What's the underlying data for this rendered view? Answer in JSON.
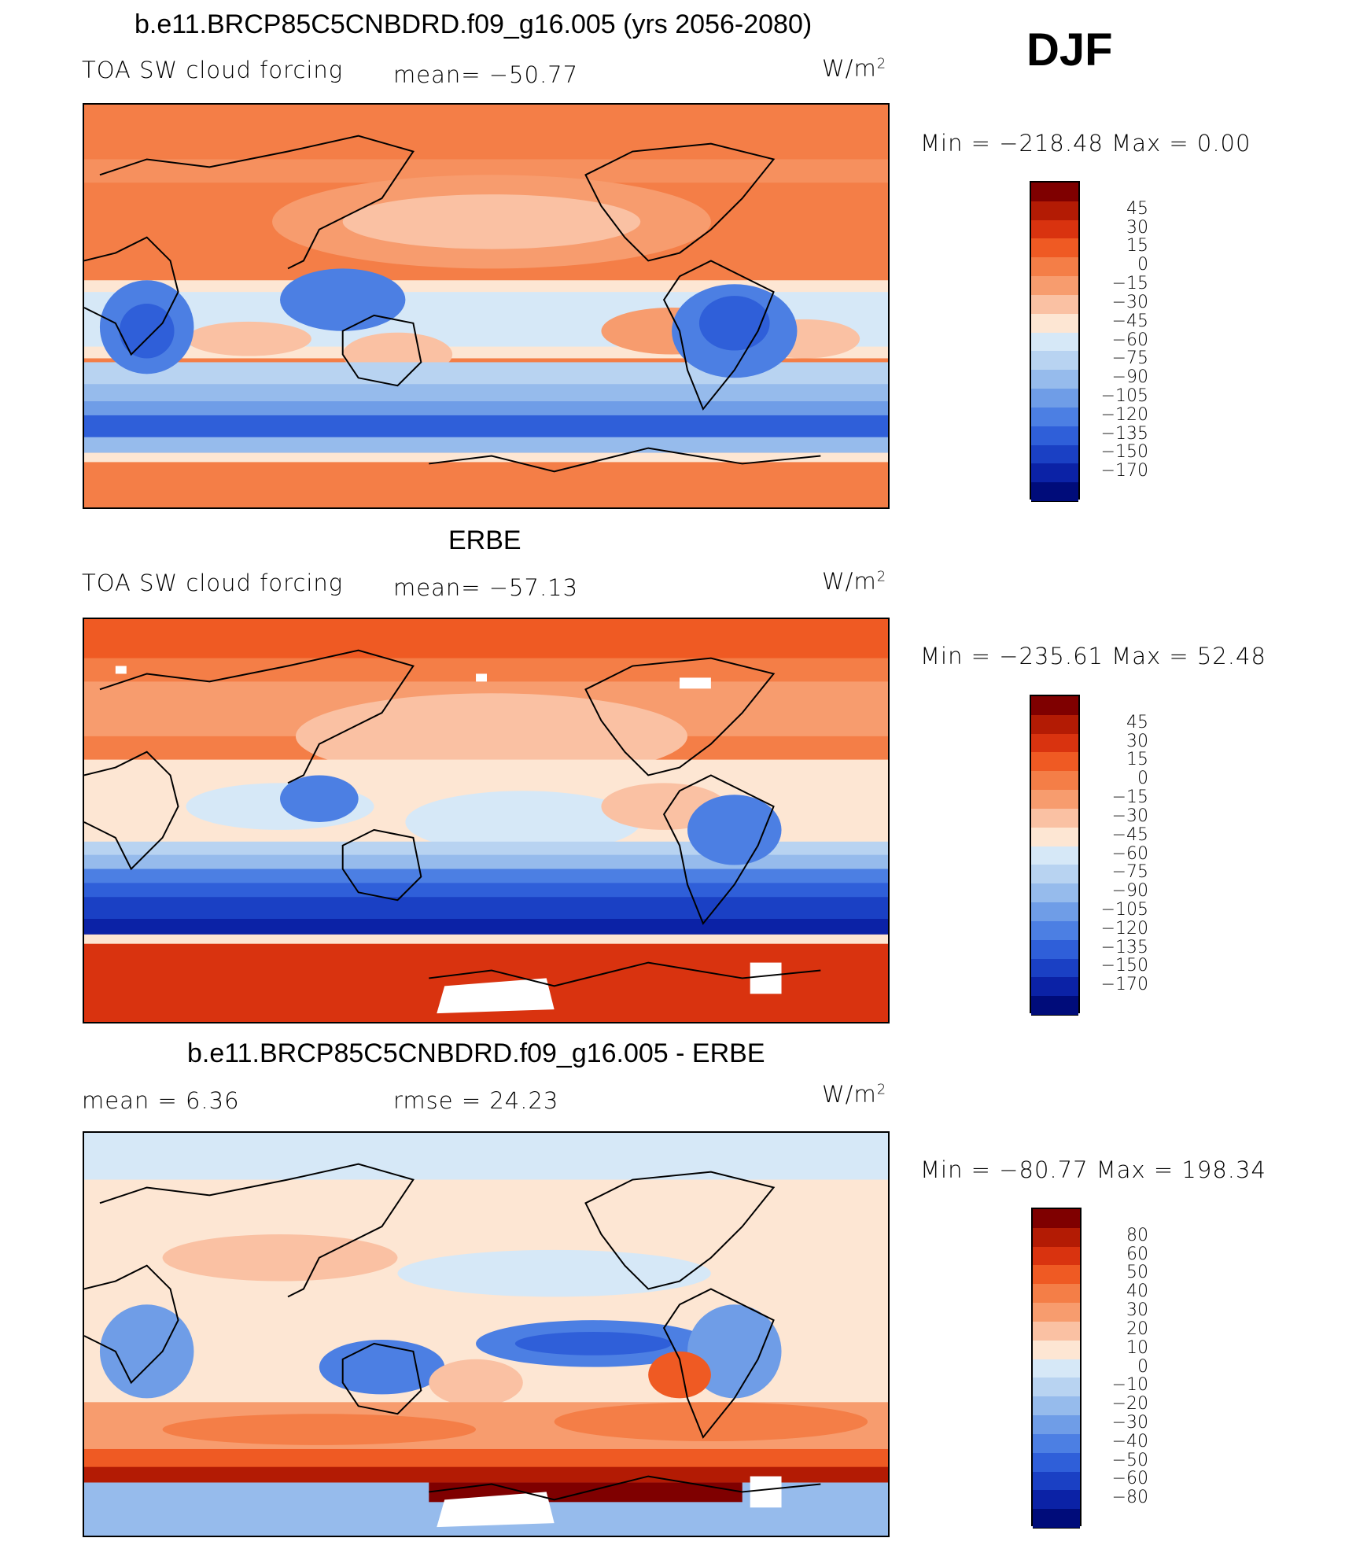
{
  "season": "DJF",
  "panels": [
    {
      "title": "b.e11.BRCP85C5CNBDRD.f09_g16.005 (yrs 2056-2080)",
      "left_label": "TOA SW cloud forcing",
      "center_label": "mean= −50.77",
      "units": "W/m",
      "units_sup": "2",
      "minmax": "Min = −218.48 Max = 0.00",
      "colorbar": {
        "colors": [
          "#7f0000",
          "#b31b04",
          "#d9330f",
          "#ef5a23",
          "#f47e47",
          "#f79c6e",
          "#fac1a3",
          "#fde6d3",
          "#d6e8f7",
          "#b8d3f1",
          "#96bbec",
          "#6f9de7",
          "#4c7fe3",
          "#2f5fd9",
          "#1a40c4",
          "#0b22a6",
          "#000c7a"
        ],
        "labels": [
          "45",
          "30",
          "15",
          "0",
          "−15",
          "−30",
          "−45",
          "−60",
          "−75",
          "−90",
          "−105",
          "−120",
          "−135",
          "−150",
          "−170"
        ]
      }
    },
    {
      "title": "ERBE",
      "left_label": "TOA SW cloud forcing",
      "center_label": "mean= −57.13",
      "units": "W/m",
      "units_sup": "2",
      "minmax": "Min = −235.61 Max = 52.48",
      "colorbar": {
        "colors": [
          "#7f0000",
          "#b31b04",
          "#d9330f",
          "#ef5a23",
          "#f47e47",
          "#f79c6e",
          "#fac1a3",
          "#fde6d3",
          "#d6e8f7",
          "#b8d3f1",
          "#96bbec",
          "#6f9de7",
          "#4c7fe3",
          "#2f5fd9",
          "#1a40c4",
          "#0b22a6",
          "#000c7a"
        ],
        "labels": [
          "45",
          "30",
          "15",
          "0",
          "−15",
          "−30",
          "−45",
          "−60",
          "−75",
          "−90",
          "−105",
          "−120",
          "−135",
          "−150",
          "−170"
        ]
      }
    },
    {
      "title": "b.e11.BRCP85C5CNBDRD.f09_g16.005 - ERBE",
      "left_label": "mean = 6.36",
      "center_label": "rmse = 24.23",
      "units": "W/m",
      "units_sup": "2",
      "minmax": "Min = −80.77 Max = 198.34",
      "colorbar": {
        "colors": [
          "#7f0000",
          "#b31b04",
          "#d9330f",
          "#ef5a23",
          "#f47e47",
          "#f79c6e",
          "#fac1a3",
          "#fde6d3",
          "#d6e8f7",
          "#b8d3f1",
          "#96bbec",
          "#6f9de7",
          "#4c7fe3",
          "#2f5fd9",
          "#1a40c4",
          "#0b22a6",
          "#000c7a"
        ],
        "labels": [
          "80",
          "60",
          "50",
          "40",
          "30",
          "20",
          "10",
          "0",
          "−10",
          "−20",
          "−30",
          "−40",
          "−50",
          "−60",
          "−80"
        ]
      }
    }
  ]
}
